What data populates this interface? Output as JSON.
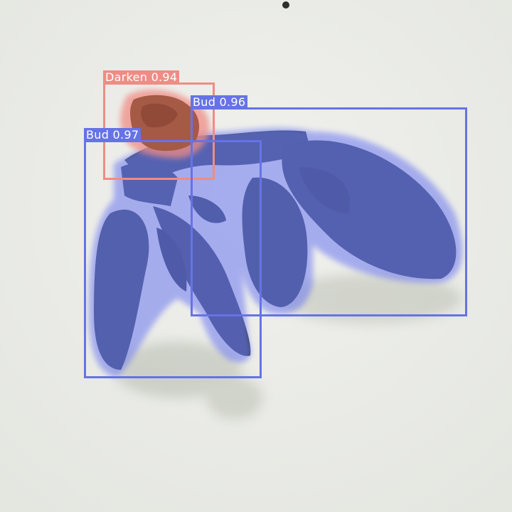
{
  "image": {
    "description_role": "object-detection visualization",
    "colors": {
      "background": "#ededeb",
      "bud": "#6673e6",
      "darken": "#f08c84"
    }
  },
  "detections": [
    {
      "class": "Bud",
      "score": "0.97",
      "label": "Bud 0.97",
      "color": "#6673e6"
    },
    {
      "class": "Bud",
      "score": "0.96",
      "label": "Bud 0.96",
      "color": "#6673e6"
    },
    {
      "class": "Darken",
      "score": "0.94",
      "label": "Darken 0.94",
      "color": "#f08c84"
    }
  ]
}
